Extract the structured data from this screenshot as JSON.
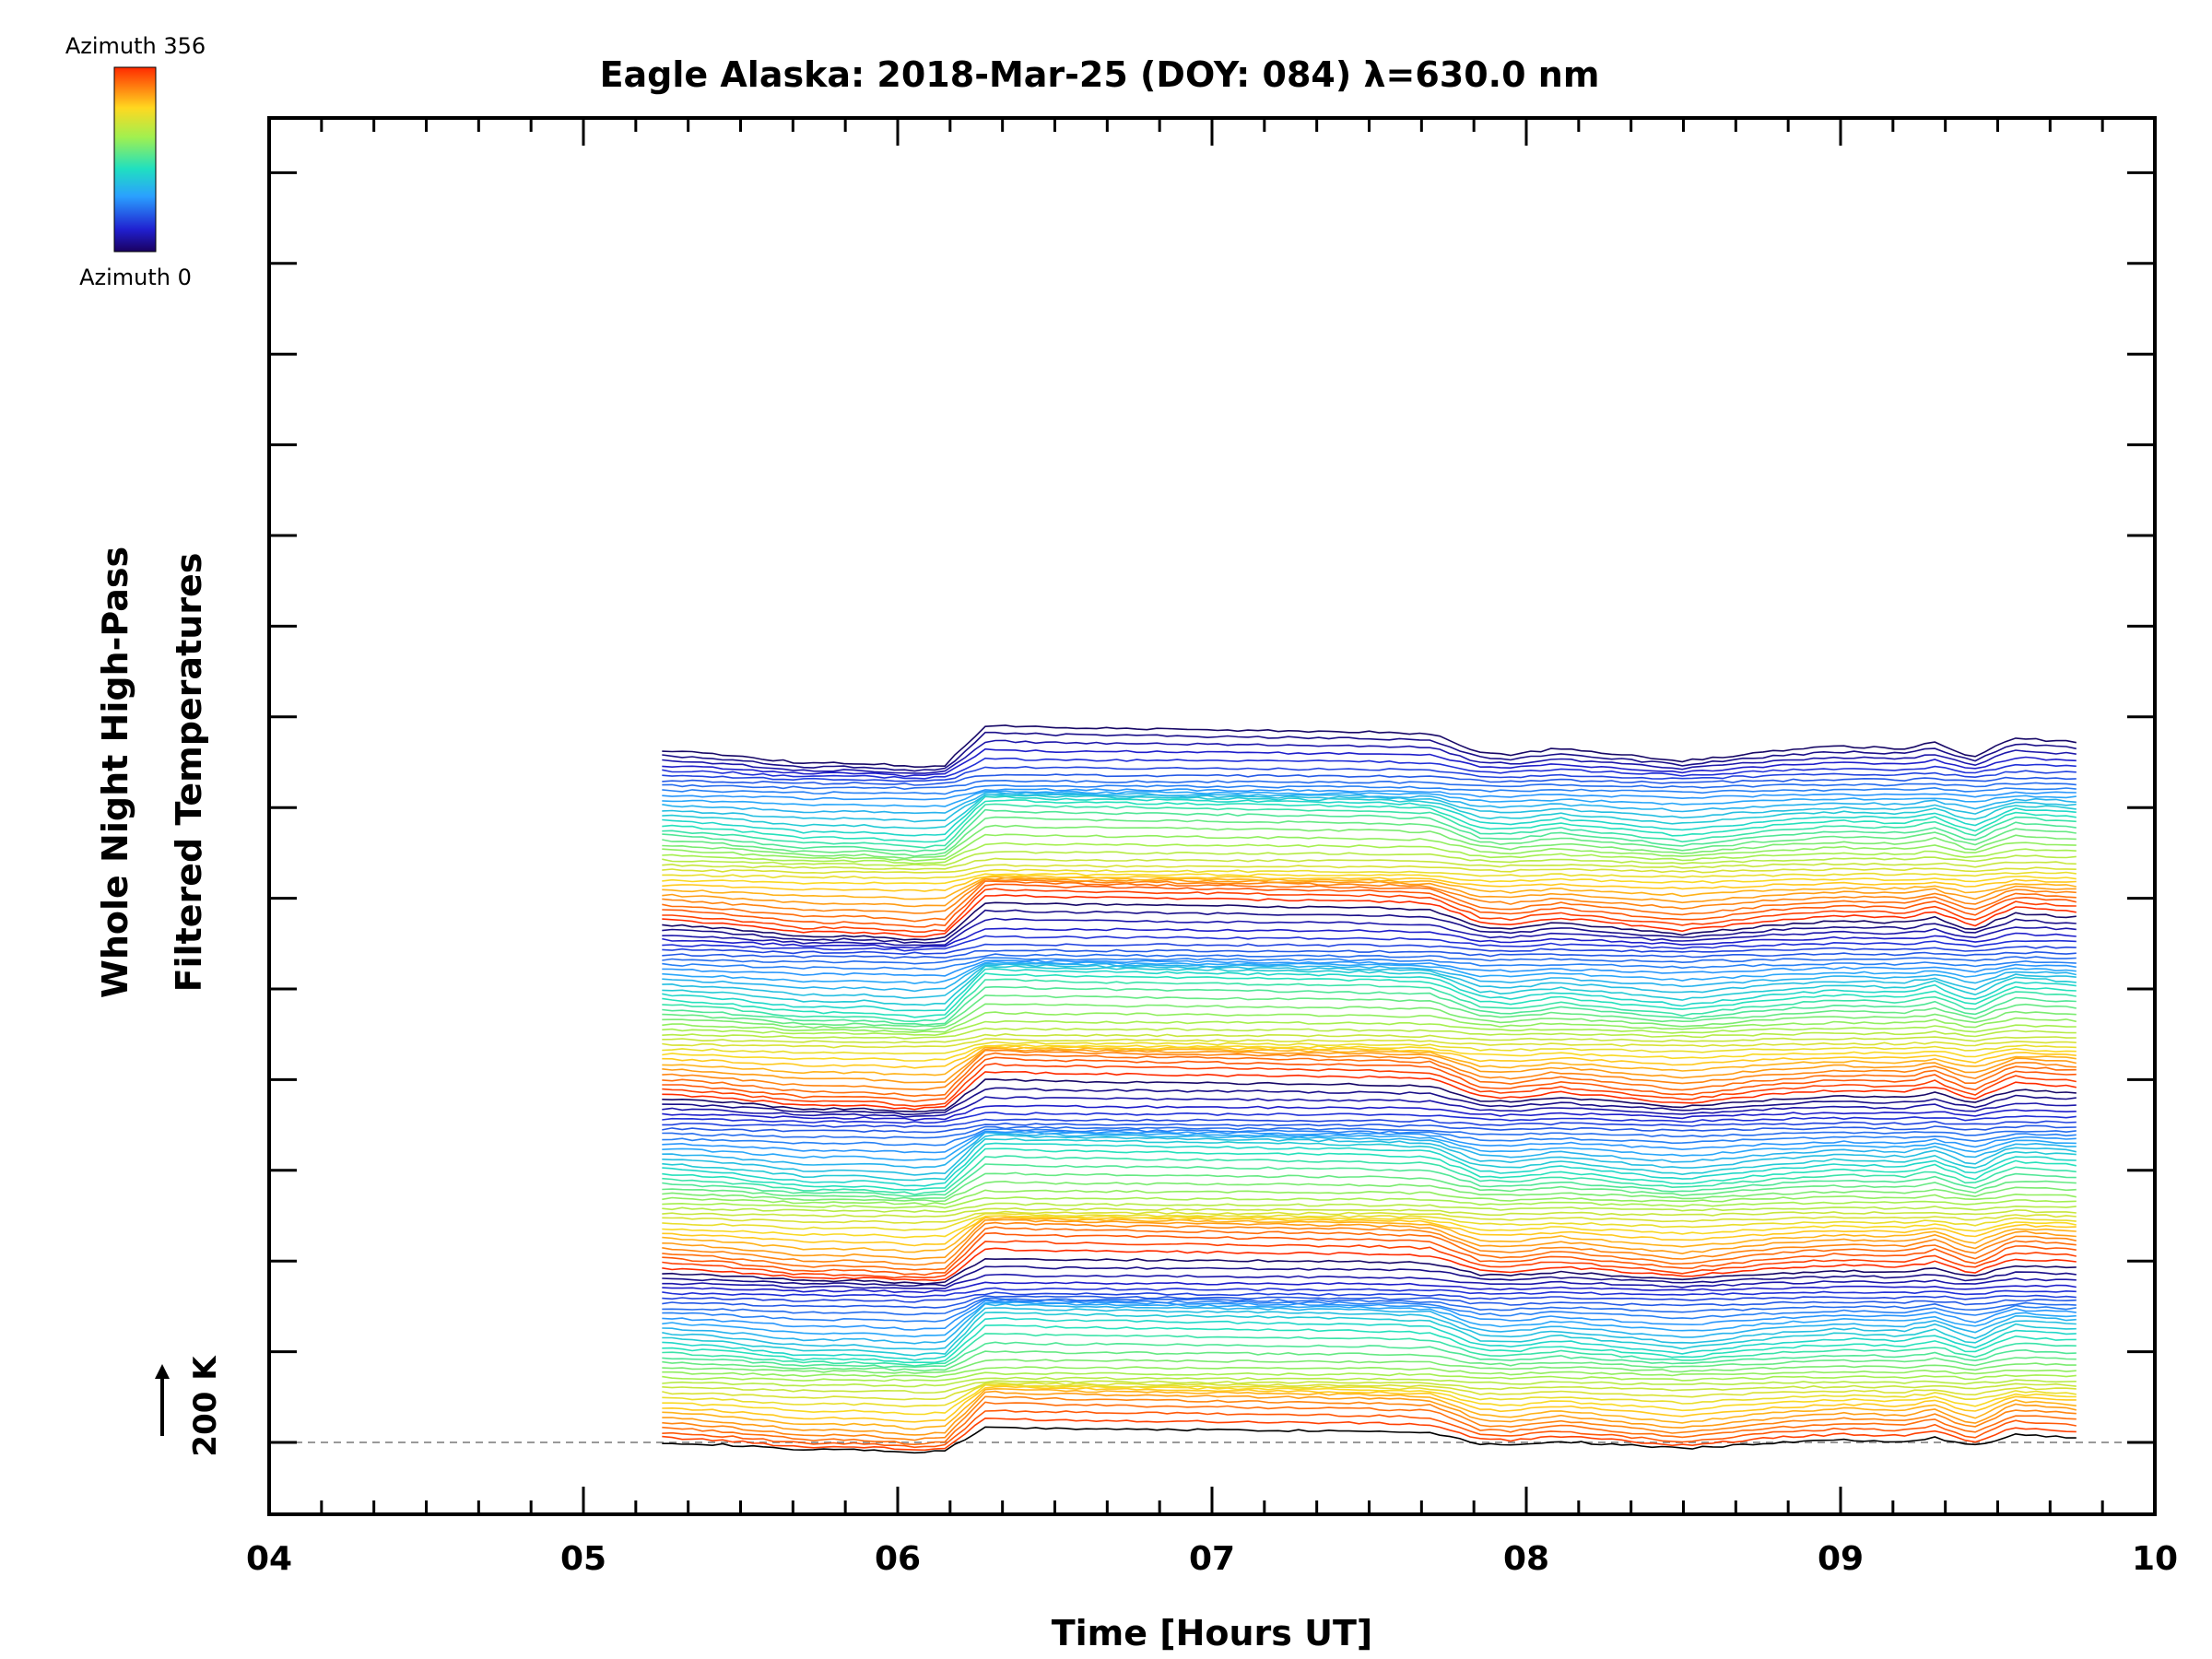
{
  "chart_data": {
    "type": "line",
    "title": "Eagle Alaska: 2018-Mar-25 (DOY: 084) λ=630.0 nm",
    "xlabel": "Time [Hours UT]",
    "ylabel_line1": "Whole Night High-Pass",
    "ylabel_line2": "Filtered Temperatures",
    "x_ticks": [
      "04",
      "05",
      "06",
      "07",
      "08",
      "09",
      "10"
    ],
    "xlim": [
      4,
      10
    ],
    "x_data_range": [
      5.25,
      9.75
    ],
    "num_traces": 140,
    "colorbar": {
      "top_label": "Azimuth  356",
      "bottom_label": "Azimuth  0",
      "colormap": "rainbow",
      "range": [
        0,
        356
      ]
    },
    "scale_bar": {
      "label": "200 K",
      "value": 200
    },
    "baseline_style": "dashed-gray",
    "profile_hours": [
      5.25,
      5.45,
      5.7,
      5.9,
      6.05,
      6.15,
      6.28,
      6.5,
      7.0,
      7.5,
      7.7,
      7.85,
      7.95,
      8.1,
      8.3,
      8.5,
      8.8,
      9.0,
      9.2,
      9.3,
      9.42,
      9.55,
      9.75
    ],
    "profile_kelvin": [
      0,
      -10,
      -30,
      -30,
      -40,
      -35,
      60,
      55,
      50,
      45,
      40,
      -5,
      -10,
      5,
      -10,
      -25,
      0,
      10,
      5,
      20,
      -15,
      30,
      20
    ],
    "colors": {
      "frame": "#000000",
      "background": "#ffffff",
      "baseline": "#999999"
    }
  }
}
